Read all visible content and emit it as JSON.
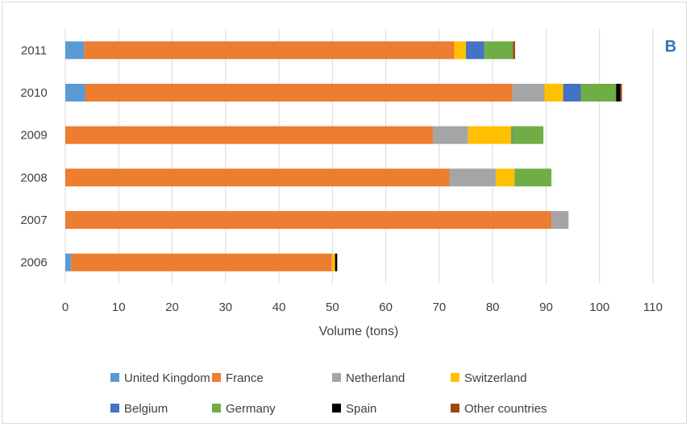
{
  "panel_label": "B",
  "colors": {
    "United Kingdom": "#5b9bd5",
    "France": "#ed7d31",
    "Netherland": "#a5a5a5",
    "Switzerland": "#ffc000",
    "Belgium": "#4472c4",
    "Germany": "#70ad47",
    "Spain": "#000000",
    "Other countries": "#9e480e"
  },
  "chart_data": {
    "type": "bar",
    "orientation": "horizontal",
    "stacked": true,
    "title": "",
    "xlabel": "Volume (tons)",
    "ylabel": "",
    "xlim": [
      0,
      110
    ],
    "x_ticks": [
      0,
      10,
      20,
      30,
      40,
      50,
      60,
      70,
      80,
      90,
      100,
      110
    ],
    "categories": [
      "2011",
      "2010",
      "2009",
      "2008",
      "2007",
      "2006"
    ],
    "legend_position": "bottom",
    "series": [
      {
        "name": "United Kingdom",
        "values": [
          3.5,
          3.7,
          0,
          0,
          0,
          1.1
        ]
      },
      {
        "name": "France",
        "values": [
          69.3,
          80.0,
          68.8,
          71.9,
          91.0,
          48.8
        ]
      },
      {
        "name": "Netherland",
        "values": [
          0,
          6.0,
          6.6,
          8.7,
          3.2,
          0
        ]
      },
      {
        "name": "Switzerland",
        "values": [
          2.2,
          3.5,
          8.1,
          3.5,
          0,
          0.6
        ]
      },
      {
        "name": "Belgium",
        "values": [
          3.4,
          3.3,
          0.2,
          0,
          0,
          0
        ]
      },
      {
        "name": "Germany",
        "values": [
          5.4,
          6.6,
          5.8,
          6.9,
          0,
          0
        ]
      },
      {
        "name": "Spain",
        "values": [
          0,
          0.8,
          0,
          0,
          0,
          0.4
        ]
      },
      {
        "name": "Other countries",
        "values": [
          0.4,
          0.3,
          0,
          0,
          0,
          0
        ]
      }
    ]
  }
}
